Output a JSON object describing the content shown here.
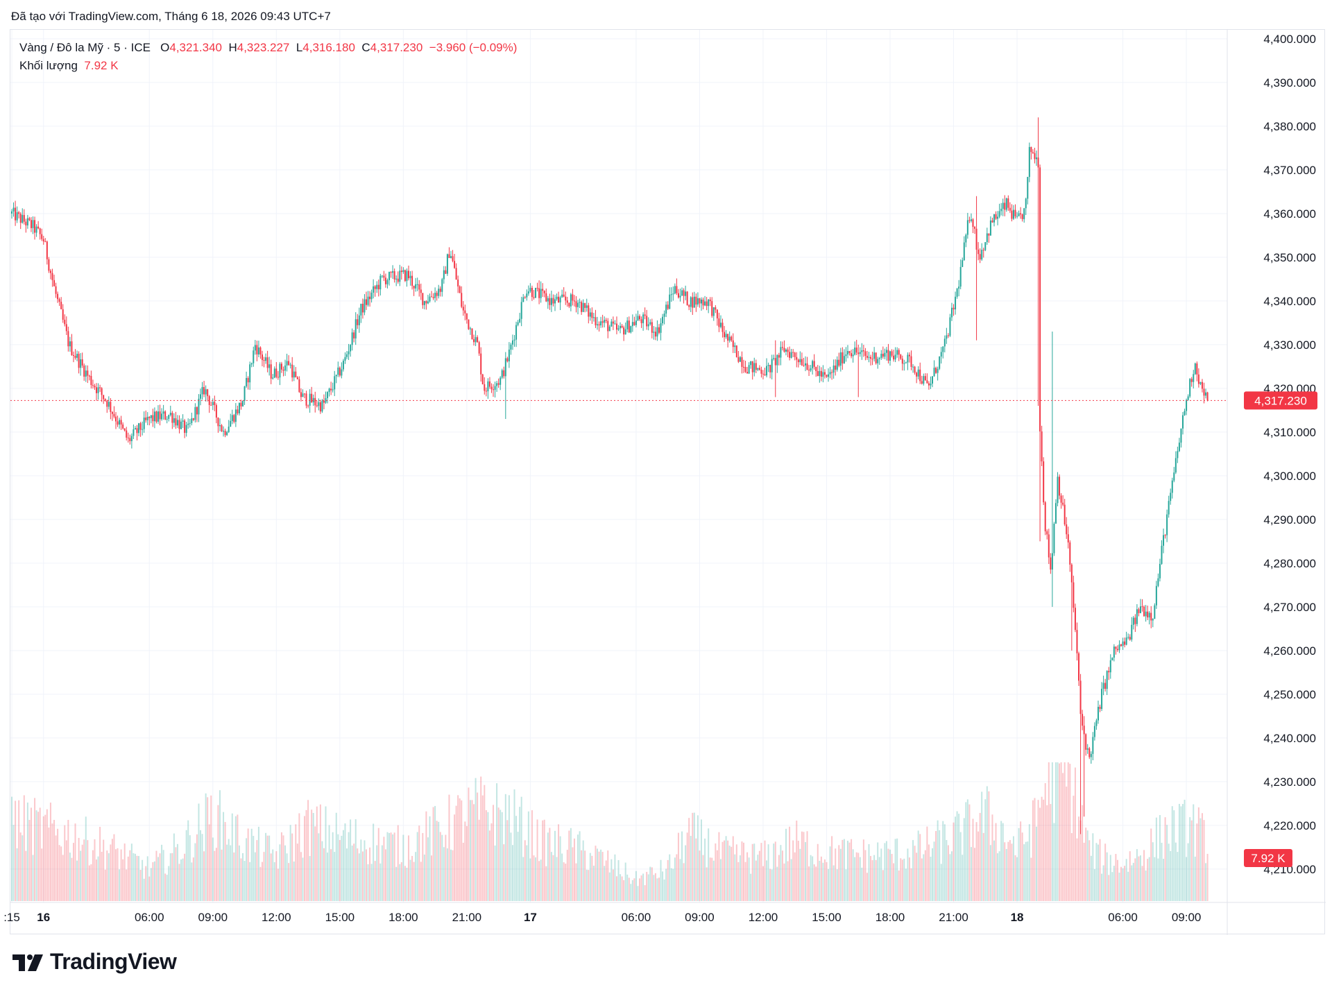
{
  "created_text": "Đã tạo với TradingView.com, Tháng 6 18, 2026 09:43 UTC+7",
  "legend": {
    "symbol": "Vàng / Đô la Mỹ · 5 · ICE",
    "open_key": "O",
    "open": "4,321.340",
    "high_key": "H",
    "high": "4,323.227",
    "low_key": "L",
    "low": "4,316.180",
    "close_key": "C",
    "close": "4,317.230",
    "change": "−3.960 (−0.09%)",
    "volume_label": "Khối lượng",
    "volume": "7.92 K"
  },
  "logo_text": "TradingView",
  "colors": {
    "up": "#26a69a",
    "down": "#f23645",
    "grid": "#f0f3fa",
    "text": "#131722"
  },
  "chart_data": {
    "type": "candlestick",
    "symbol": "Vàng / Đô la Mỹ",
    "interval": "5",
    "exchange": "ICE",
    "y_axis": {
      "min": 4200,
      "max": 4400,
      "ticks": [
        "4,400.000",
        "4,390.000",
        "4,380.000",
        "4,370.000",
        "4,360.000",
        "4,350.000",
        "4,340.000",
        "4,330.000",
        "4,320.000",
        "4,310.000",
        "4,300.000",
        "4,290.000",
        "4,280.000",
        "4,270.000",
        "4,260.000",
        "4,250.000",
        "4,240.000",
        "4,230.000",
        "4,220.000",
        "4,210.000"
      ],
      "last_price_label": "4,317.230",
      "last_price": 4317.23,
      "volume_label": "7.92 K"
    },
    "x_axis": {
      "ticks": [
        {
          "label": ":15",
          "t": -0.5,
          "bold": false
        },
        {
          "label": "16",
          "t": 1,
          "bold": true
        },
        {
          "label": "06:00",
          "t": 6,
          "bold": false
        },
        {
          "label": "09:00",
          "t": 9,
          "bold": false
        },
        {
          "label": "12:00",
          "t": 12,
          "bold": false
        },
        {
          "label": "15:00",
          "t": 15,
          "bold": false
        },
        {
          "label": "18:00",
          "t": 18,
          "bold": false
        },
        {
          "label": "21:00",
          "t": 21,
          "bold": false
        },
        {
          "label": "17",
          "t": 24,
          "bold": true
        },
        {
          "label": "06:00",
          "t": 29,
          "bold": false
        },
        {
          "label": "09:00",
          "t": 32,
          "bold": false
        },
        {
          "label": "12:00",
          "t": 35,
          "bold": false
        },
        {
          "label": "15:00",
          "t": 38,
          "bold": false
        },
        {
          "label": "18:00",
          "t": 41,
          "bold": false
        },
        {
          "label": "21:00",
          "t": 44,
          "bold": false
        },
        {
          "label": "18",
          "t": 47,
          "bold": true
        },
        {
          "label": "06:00",
          "t": 52,
          "bold": false
        },
        {
          "label": "09:00",
          "t": 55,
          "bold": false
        }
      ]
    },
    "price_path": [
      [
        -0.5,
        4360
      ],
      [
        0.5,
        4357
      ],
      [
        1.0,
        4354
      ],
      [
        1.5,
        4343
      ],
      [
        2.2,
        4330
      ],
      [
        3.2,
        4322
      ],
      [
        4.0,
        4317
      ],
      [
        5.0,
        4308
      ],
      [
        6.0,
        4313
      ],
      [
        7.0,
        4314
      ],
      [
        7.8,
        4310
      ],
      [
        8.6,
        4320
      ],
      [
        9.5,
        4310
      ],
      [
        10.4,
        4317
      ],
      [
        11.0,
        4330
      ],
      [
        11.8,
        4323
      ],
      [
        12.6,
        4326
      ],
      [
        13.2,
        4318
      ],
      [
        14.2,
        4316
      ],
      [
        15.2,
        4326
      ],
      [
        16.0,
        4338
      ],
      [
        17.0,
        4345
      ],
      [
        18.2,
        4346
      ],
      [
        19.0,
        4340
      ],
      [
        19.8,
        4343
      ],
      [
        20.2,
        4352
      ],
      [
        20.8,
        4338
      ],
      [
        21.5,
        4330
      ],
      [
        21.8,
        4320
      ],
      [
        22.6,
        4322
      ],
      [
        23.0,
        4328
      ],
      [
        23.8,
        4343
      ],
      [
        25.0,
        4340
      ],
      [
        26.2,
        4340
      ],
      [
        27.0,
        4336
      ],
      [
        28.2,
        4333
      ],
      [
        29.2,
        4336
      ],
      [
        30.0,
        4333
      ],
      [
        30.8,
        4343
      ],
      [
        31.5,
        4340
      ],
      [
        32.4,
        4340
      ],
      [
        33.2,
        4332
      ],
      [
        34.2,
        4325
      ],
      [
        35.2,
        4324
      ],
      [
        36.0,
        4329
      ],
      [
        37.0,
        4326
      ],
      [
        38.0,
        4322
      ],
      [
        39.0,
        4329
      ],
      [
        40.0,
        4327
      ],
      [
        41.0,
        4328
      ],
      [
        42.0,
        4326
      ],
      [
        42.8,
        4320
      ],
      [
        43.6,
        4330
      ],
      [
        44.2,
        4343
      ],
      [
        44.8,
        4361
      ],
      [
        45.2,
        4350
      ],
      [
        45.8,
        4358
      ],
      [
        46.5,
        4362
      ],
      [
        47.0,
        4358
      ],
      [
        47.4,
        4361
      ],
      [
        47.6,
        4375
      ],
      [
        48.0,
        4372
      ],
      [
        48.05,
        4315
      ],
      [
        48.3,
        4290
      ],
      [
        48.6,
        4278
      ],
      [
        48.9,
        4300
      ],
      [
        49.4,
        4285
      ],
      [
        49.8,
        4262
      ],
      [
        50.0,
        4245
      ],
      [
        50.4,
        4235
      ],
      [
        51.0,
        4250
      ],
      [
        51.6,
        4260
      ],
      [
        52.2,
        4262
      ],
      [
        52.8,
        4270
      ],
      [
        53.4,
        4268
      ],
      [
        53.9,
        4285
      ],
      [
        54.4,
        4300
      ],
      [
        54.9,
        4315
      ],
      [
        55.4,
        4326
      ],
      [
        55.7,
        4320
      ],
      [
        56.0,
        4317.23
      ]
    ],
    "events": [
      {
        "t": 48.0,
        "high": 4382,
        "low": 4316
      },
      {
        "t": 48.1,
        "high": 4318,
        "low": 4285
      },
      {
        "t": 48.7,
        "high": 4333,
        "low": 4270
      },
      {
        "t": 49.6,
        "high": 4280,
        "low": 4260
      },
      {
        "t": 50.0,
        "high": 4250,
        "low": 4218
      },
      {
        "t": 50.2,
        "high": 4245,
        "low": 4222
      },
      {
        "t": 45.1,
        "high": 4364,
        "low": 4331
      },
      {
        "t": 22.8,
        "high": 4328,
        "low": 4313
      },
      {
        "t": 35.6,
        "high": 4331,
        "low": 4318
      },
      {
        "t": 39.5,
        "high": 4330,
        "low": 4318
      }
    ],
    "volume": {
      "max": 48,
      "profile": [
        [
          -0.5,
          30
        ],
        [
          1,
          27
        ],
        [
          2.5,
          24
        ],
        [
          4.5,
          18
        ],
        [
          6,
          12
        ],
        [
          7.5,
          20
        ],
        [
          9,
          32
        ],
        [
          10.5,
          22
        ],
        [
          12,
          17
        ],
        [
          13.5,
          28
        ],
        [
          15,
          24
        ],
        [
          16.5,
          22
        ],
        [
          18,
          20
        ],
        [
          19.5,
          26
        ],
        [
          21.5,
          34
        ],
        [
          23,
          32
        ],
        [
          24.5,
          22
        ],
        [
          26,
          20
        ],
        [
          27.5,
          15
        ],
        [
          29,
          8
        ],
        [
          30.5,
          12
        ],
        [
          31.5,
          25
        ],
        [
          33,
          18
        ],
        [
          35,
          16
        ],
        [
          36.5,
          22
        ],
        [
          38,
          18
        ],
        [
          40,
          17
        ],
        [
          42,
          18
        ],
        [
          44,
          24
        ],
        [
          45.5,
          32
        ],
        [
          47,
          20
        ],
        [
          47.8,
          28
        ],
        [
          48.5,
          48
        ],
        [
          49.5,
          44
        ],
        [
          50.4,
          20
        ],
        [
          51,
          16
        ],
        [
          52,
          14
        ],
        [
          53,
          18
        ],
        [
          54,
          26
        ],
        [
          55.3,
          28
        ],
        [
          56,
          22
        ]
      ]
    }
  }
}
